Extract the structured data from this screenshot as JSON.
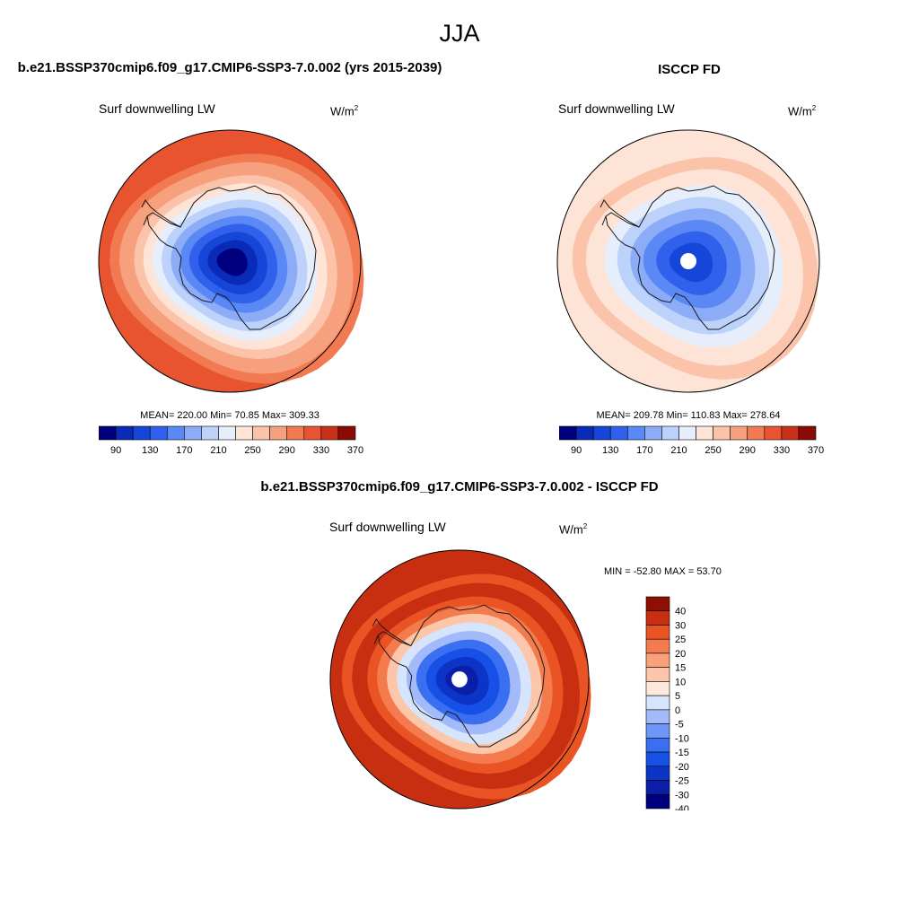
{
  "figure": {
    "title": "JJA"
  },
  "colors": {
    "abs_levels": [
      "#00007f",
      "#0a2ab8",
      "#1646d8",
      "#3060ec",
      "#5a88f4",
      "#8cacf8",
      "#bcd2fb",
      "#e6eefc",
      "#fde4d6",
      "#fbc4aa",
      "#f7a07e",
      "#f27a52",
      "#e7542f",
      "#c8301a",
      "#8a0a05"
    ],
    "diff_levels": [
      "#00007f",
      "#0a1ea8",
      "#0c35c8",
      "#1650e6",
      "#3a6ff2",
      "#6e96f6",
      "#a2baf9",
      "#d6e4fc",
      "#fde8dc",
      "#fcc6aa",
      "#f9a27a",
      "#f47b4e",
      "#ea5424",
      "#c82e10",
      "#8e0f04"
    ],
    "coast": "#1a1a1a",
    "hole": "#ffffff"
  },
  "panels": {
    "model": {
      "title": "b.e21.BSSP370cmip6.f09_g17.CMIP6-SSP3-7.0.002 (yrs 2015-2039)",
      "variable": "Surf downwelling LW",
      "units_base": "W/m",
      "units_sup": "2",
      "stats": "MEAN= 220.00  Min=  70.85  Max= 309.33"
    },
    "obs": {
      "title": "ISCCP FD",
      "variable": "Surf downwelling LW",
      "units_base": "W/m",
      "units_sup": "2",
      "stats": "MEAN= 209.78  Min= 110.83  Max= 278.64"
    },
    "diff": {
      "title": "b.e21.BSSP370cmip6.f09_g17.CMIP6-SSP3-7.0.002 - ISCCP FD",
      "variable": "Surf downwelling LW",
      "units_base": "W/m",
      "units_sup": "2",
      "stats": "MIN = -52.80 MAX =  53.70"
    }
  },
  "chart_data": [
    {
      "type": "heatmap",
      "projection": "south polar stereographic",
      "title": "b.e21.BSSP370cmip6.f09_g17.CMIP6-SSP3-7.0.002 (yrs 2015-2039)",
      "variable": "Surf downwelling LW",
      "units": "W/m2",
      "mean": 220.0,
      "min": 70.85,
      "max": 309.33,
      "colorbar_ticks": [
        "90",
        "130",
        "170",
        "210",
        "250",
        "290",
        "330",
        "370"
      ],
      "colorbar_bins": 15,
      "fill_levels_outer_to_inner": [
        12,
        11,
        10,
        9,
        8,
        7,
        6,
        5,
        4,
        3,
        2,
        1,
        0
      ],
      "pole_hole": false
    },
    {
      "type": "heatmap",
      "projection": "south polar stereographic",
      "title": "ISCCP FD",
      "variable": "Surf downwelling LW",
      "units": "W/m2",
      "mean": 209.78,
      "min": 110.83,
      "max": 278.64,
      "colorbar_ticks": [
        "90",
        "130",
        "170",
        "210",
        "250",
        "290",
        "330",
        "370"
      ],
      "colorbar_bins": 15,
      "fill_levels_outer_to_inner": [
        8,
        9,
        8,
        7,
        6,
        5,
        4,
        3,
        2
      ],
      "pole_hole": true
    },
    {
      "type": "heatmap",
      "projection": "south polar stereographic",
      "title": "b.e21.BSSP370cmip6.f09_g17.CMIP6-SSP3-7.0.002 - ISCCP FD",
      "variable": "Surf downwelling LW",
      "units": "W/m2",
      "min": -52.8,
      "max": 53.7,
      "colorbar_ticks": [
        "40",
        "30",
        "25",
        "20",
        "15",
        "10",
        "5",
        "0",
        "-5",
        "-10",
        "-15",
        "-20",
        "-25",
        "-30",
        "-40"
      ],
      "colorbar_bins": 16,
      "fill_levels_outer_to_inner": [
        13,
        12,
        13,
        12,
        11,
        9,
        7,
        6,
        4,
        3,
        2,
        1
      ],
      "pole_hole": true
    }
  ]
}
